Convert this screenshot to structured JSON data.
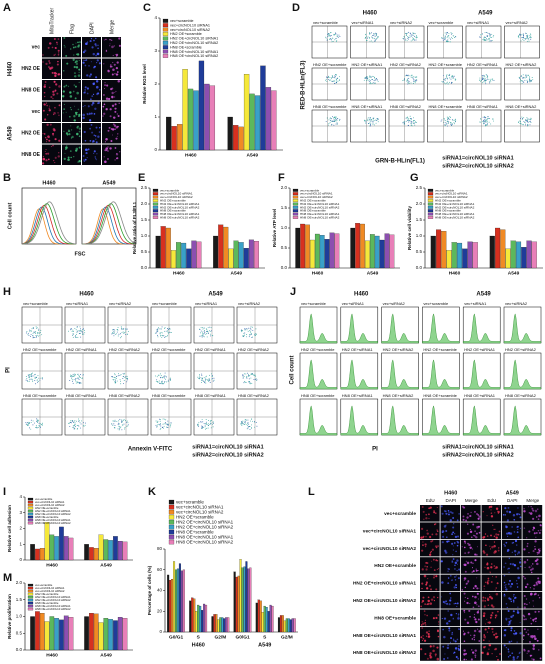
{
  "A": {
    "letter": "A",
    "columns": [
      "MitoTracker",
      "Flag",
      "DAPI",
      "Merge"
    ],
    "groups": [
      {
        "name": "H460",
        "rows": [
          "vec",
          "HN2 OE",
          "HN8 OE"
        ]
      },
      {
        "name": "A549",
        "rows": [
          "vec",
          "HN2 OE",
          "HN8 OE"
        ]
      }
    ]
  },
  "B": {
    "letter": "B",
    "plots": [
      "H460",
      "A549"
    ],
    "x_label": "FSC",
    "y_label": "Cell count"
  },
  "C": {
    "letter": "C",
    "type": "bar",
    "y_label": "Relative ROS level",
    "categories": [
      "H460",
      "A549"
    ],
    "ylim": [
      0,
      4
    ],
    "yticks": [
      0,
      1,
      2,
      3,
      4
    ],
    "legend": "inside",
    "series": [
      {
        "name": "vec+scramble",
        "color": "#1a1a1a",
        "values": [
          1.0,
          1.0
        ]
      },
      {
        "name": "vec+circNOL10 siRNA1",
        "color": "#d7301f",
        "values": [
          0.72,
          0.75
        ]
      },
      {
        "name": "vec+circNOL10 siRNA2",
        "color": "#f08a24",
        "values": [
          0.78,
          0.7
        ]
      },
      {
        "name": "HN2 OE+scramble",
        "color": "#f5e83a",
        "values": [
          2.45,
          2.3
        ]
      },
      {
        "name": "HN2 OE+circNOL10 siRNA1",
        "color": "#5cb85c",
        "values": [
          1.85,
          1.7
        ]
      },
      {
        "name": "HN2 OE+circNOL10 siRNA2",
        "color": "#39a0c8",
        "values": [
          1.8,
          1.65
        ]
      },
      {
        "name": "HN8 OE+scramble",
        "color": "#1f3c99",
        "values": [
          2.7,
          2.55
        ]
      },
      {
        "name": "HN8 OE+circNOL10 siRNA1",
        "color": "#8c4fb0",
        "values": [
          2.0,
          1.9
        ]
      },
      {
        "name": "HN8 OE+circNOL10 siRNA2",
        "color": "#e87fb8",
        "values": [
          1.95,
          1.8
        ]
      }
    ]
  },
  "D": {
    "letter": "D",
    "plot": "scatter",
    "titles": [
      "H460",
      "A549"
    ],
    "cells": [
      [
        "vec+scramble",
        "vec+siRNA1",
        "vec+siRNA2",
        "vec+scramble",
        "vec+siRNA1",
        "vec+siRNA2"
      ],
      [
        "HN2 OE+scramble",
        "HN2 OE+siRNA1",
        "HN2 OE+siRNA2",
        "HN2 OE+scramble",
        "HN2 OE+siRNA1",
        "HN2 OE+siRNA2"
      ],
      [
        "HN8 OE+scramble",
        "HN8 OE+siRNA1",
        "HN8 OE+siRNA2",
        "HN8 OE+scramble",
        "HN8 OE+siRNA1",
        "HN8 OE+siRNA2"
      ]
    ],
    "x_label": "GRN-B-HLin(FL1)",
    "y_label": "RED-B-HLin(FL3)",
    "note": [
      "siRNA1=circNOL10 siRNA1",
      "siRNA2=circNOL10 siRNA2"
    ]
  },
  "E": {
    "letter": "E",
    "type": "bar",
    "y_label": "Relative ratio of FL3/FL1",
    "categories": [
      "H460",
      "A549"
    ],
    "ylim": [
      0,
      2.5
    ],
    "yticks": [
      {
        "value": 0,
        "label": "0.0"
      },
      {
        "value": 0.5,
        "label": "0.5"
      },
      {
        "value": 1,
        "label": "1.0"
      },
      {
        "value": 1.5,
        "label": "1.5"
      },
      {
        "value": 2,
        "label": "2.0"
      },
      {
        "value": 2.5,
        "label": "2.5"
      }
    ],
    "legend": "inside",
    "series": [
      {
        "name": "vec+scramble",
        "color": "#1a1a1a",
        "values": [
          1.0,
          1.0
        ]
      },
      {
        "name": "vec+circNOL10 siRNA1",
        "color": "#d7301f",
        "values": [
          1.3,
          1.35
        ]
      },
      {
        "name": "vec+circNOL10 siRNA2",
        "color": "#f08a24",
        "values": [
          1.25,
          1.28
        ]
      },
      {
        "name": "HN2 OE+scramble",
        "color": "#f5e83a",
        "values": [
          0.55,
          0.6
        ]
      },
      {
        "name": "HN2 OE+circNOL10 siRNA1",
        "color": "#5cb85c",
        "values": [
          0.8,
          0.85
        ]
      },
      {
        "name": "HN2 OE+circNOL10 siRNA2",
        "color": "#39a0c8",
        "values": [
          0.78,
          0.8
        ]
      },
      {
        "name": "HN8 OE+scramble",
        "color": "#1f3c99",
        "values": [
          0.6,
          0.62
        ]
      },
      {
        "name": "HN8 OE+circNOL10 siRNA1",
        "color": "#8c4fb0",
        "values": [
          0.85,
          0.88
        ]
      },
      {
        "name": "HN8 OE+circNOL10 siRNA2",
        "color": "#e87fb8",
        "values": [
          0.82,
          0.84
        ]
      }
    ]
  },
  "F": {
    "letter": "F",
    "type": "bar",
    "y_label": "Relative ATP level",
    "categories": [
      "H460",
      "A549"
    ],
    "ylim": [
      0,
      2
    ],
    "yticks": [
      {
        "value": 0,
        "label": "0.0"
      },
      {
        "value": 0.5,
        "label": "0.5"
      },
      {
        "value": 1,
        "label": "1.0"
      },
      {
        "value": 1.5,
        "label": "1.5"
      },
      {
        "value": 2,
        "label": "2.0"
      }
    ],
    "legend": "inside",
    "series": [
      {
        "name": "vec+scramble",
        "color": "#1a1a1a",
        "values": [
          1.0,
          1.0
        ]
      },
      {
        "name": "vec+circNOL10 siRNA1",
        "color": "#d7301f",
        "values": [
          1.1,
          1.12
        ]
      },
      {
        "name": "vec+circNOL10 siRNA2",
        "color": "#f08a24",
        "values": [
          1.08,
          1.1
        ]
      },
      {
        "name": "HN2 OE+scramble",
        "color": "#f5e83a",
        "values": [
          0.7,
          0.68
        ]
      },
      {
        "name": "HN2 OE+circNOL10 siRNA1",
        "color": "#5cb85c",
        "values": [
          0.85,
          0.84
        ]
      },
      {
        "name": "HN2 OE+circNOL10 siRNA2",
        "color": "#39a0c8",
        "values": [
          0.82,
          0.8
        ]
      },
      {
        "name": "HN8 OE+scramble",
        "color": "#1f3c99",
        "values": [
          0.72,
          0.7
        ]
      },
      {
        "name": "HN8 OE+circNOL10 siRNA1",
        "color": "#8c4fb0",
        "values": [
          0.88,
          0.86
        ]
      },
      {
        "name": "HN8 OE+circNOL10 siRNA2",
        "color": "#e87fb8",
        "values": [
          0.86,
          0.83
        ]
      }
    ]
  },
  "G": {
    "letter": "G",
    "type": "bar",
    "y_label": "Relative cell viability",
    "categories": [
      "H460",
      "A549"
    ],
    "ylim": [
      0,
      2.5
    ],
    "yticks": [
      {
        "value": 0,
        "label": "0.0"
      },
      {
        "value": 0.5,
        "label": "0.5"
      },
      {
        "value": 1,
        "label": "1.0"
      },
      {
        "value": 1.5,
        "label": "1.5"
      },
      {
        "value": 2,
        "label": "2.0"
      },
      {
        "value": 2.5,
        "label": "2.5"
      }
    ],
    "legend": "inside",
    "series": [
      {
        "name": "vec+scramble",
        "color": "#1a1a1a",
        "values": [
          1.0,
          1.0
        ]
      },
      {
        "name": "vec+circNOL10 siRNA1",
        "color": "#d7301f",
        "values": [
          1.2,
          1.25
        ]
      },
      {
        "name": "vec+circNOL10 siRNA2",
        "color": "#f08a24",
        "values": [
          1.15,
          1.2
        ]
      },
      {
        "name": "HN2 OE+scramble",
        "color": "#f5e83a",
        "values": [
          0.55,
          0.6
        ]
      },
      {
        "name": "HN2 OE+circNOL10 siRNA1",
        "color": "#5cb85c",
        "values": [
          0.8,
          0.85
        ]
      },
      {
        "name": "HN2 OE+circNOL10 siRNA2",
        "color": "#39a0c8",
        "values": [
          0.78,
          0.82
        ]
      },
      {
        "name": "HN8 OE+scramble",
        "color": "#1f3c99",
        "values": [
          0.6,
          0.65
        ]
      },
      {
        "name": "HN8 OE+circNOL10 siRNA1",
        "color": "#8c4fb0",
        "values": [
          0.82,
          0.85
        ]
      },
      {
        "name": "HN8 OE+circNOL10 siRNA2",
        "color": "#e87fb8",
        "values": [
          0.8,
          0.82
        ]
      }
    ]
  },
  "H": {
    "letter": "H",
    "plot": "scatter",
    "titles": [
      "H460",
      "A549"
    ],
    "cells": [
      [
        "vec+scramble",
        "vec+siRNA1",
        "vec+siRNA2",
        "vec+scramble",
        "vec+siRNA1",
        "vec+siRNA2"
      ],
      [
        "HN2 OE+scramble",
        "HN2 OE+siRNA1",
        "HN2 OE+siRNA2",
        "HN2 OE+scramble",
        "HN2 OE+siRNA1",
        "HN2 OE+siRNA2"
      ],
      [
        "HN8 OE+scramble",
        "HN8 OE+siRNA1",
        "HN8 OE+siRNA2",
        "HN8 OE+scramble",
        "HN8 OE+siRNA1",
        "HN8 OE+siRNA2"
      ]
    ],
    "x_label": "Annexin V-FITC",
    "y_label": "PI",
    "note": [
      "siRNA1=circNOL10 siRNA1",
      "siRNA2=circNOL10 siRNA2"
    ]
  },
  "J": {
    "letter": "J",
    "plot": "histogram",
    "titles": [
      "H460",
      "A549"
    ],
    "cells": [
      [
        "vec+scramble",
        "vec+siRNA1",
        "vec+siRNA2",
        "vec+scramble",
        "vec+siRNA1",
        "vec+siRNA2"
      ],
      [
        "HN2 OE+scramble",
        "HN2 OE+siRNA1",
        "HN2 OE+siRNA2",
        "HN2 OE+scramble",
        "HN2 OE+siRNA1",
        "HN2 OE+siRNA2"
      ],
      [
        "HN8 OE+scramble",
        "HN8 OE+siRNA1",
        "HN8 OE+siRNA2",
        "HN8 OE+scramble",
        "HN8 OE+siRNA1",
        "HN8 OE+siRNA2"
      ]
    ],
    "x_label": "PI",
    "y_label": "Cell count",
    "note": [
      "siRNA1=circNOL10 siRNA1",
      "siRNA2=circNOL10 siRNA2"
    ]
  },
  "I": {
    "letter": "I",
    "type": "bar",
    "y_label": "Relative cell adhesion",
    "categories": [
      "H460",
      "A549"
    ],
    "ylim": [
      0,
      4
    ],
    "yticks": [
      0,
      1,
      2,
      3,
      4
    ],
    "legend": "inside",
    "series": [
      {
        "name": "vec+scramble",
        "color": "#1a1a1a",
        "values": [
          1.0,
          1.0
        ]
      },
      {
        "name": "vec+circNOL10 siRNA1",
        "color": "#d7301f",
        "values": [
          0.7,
          0.8
        ]
      },
      {
        "name": "vec+circNOL10 siRNA2",
        "color": "#f08a24",
        "values": [
          0.75,
          0.75
        ]
      },
      {
        "name": "HN2 OE+scramble",
        "color": "#f5e83a",
        "values": [
          2.4,
          1.6
        ]
      },
      {
        "name": "HN2 OE+circNOL10 siRNA1",
        "color": "#5cb85c",
        "values": [
          1.6,
          1.3
        ]
      },
      {
        "name": "HN2 OE+circNOL10 siRNA2",
        "color": "#39a0c8",
        "values": [
          1.5,
          1.25
        ]
      },
      {
        "name": "HN8 OE+scramble",
        "color": "#1f3c99",
        "values": [
          2.1,
          1.5
        ]
      },
      {
        "name": "HN8 OE+circNOL10 siRNA1",
        "color": "#8c4fb0",
        "values": [
          1.5,
          1.2
        ]
      },
      {
        "name": "HN8 OE+circNOL10 siRNA2",
        "color": "#e87fb8",
        "values": [
          1.4,
          1.15
        ]
      }
    ]
  },
  "M": {
    "letter": "M",
    "type": "bar",
    "y_label": "Relative proliferation",
    "categories": [
      "H460",
      "A549"
    ],
    "ylim": [
      0,
      2
    ],
    "yticks": [
      {
        "value": 0,
        "label": "0.0"
      },
      {
        "value": 0.5,
        "label": "0.5"
      },
      {
        "value": 1,
        "label": "1.0"
      },
      {
        "value": 1.5,
        "label": "1.5"
      },
      {
        "value": 2,
        "label": "2.0"
      }
    ],
    "legend": "inside",
    "series": [
      {
        "name": "vec+scramble",
        "color": "#1a1a1a",
        "values": [
          1.0,
          1.0
        ]
      },
      {
        "name": "vec+circNOL10 siRNA1",
        "color": "#d7301f",
        "values": [
          1.15,
          1.1
        ]
      },
      {
        "name": "vec+circNOL10 siRNA2",
        "color": "#f08a24",
        "values": [
          1.1,
          1.08
        ]
      },
      {
        "name": "HN2 OE+scramble",
        "color": "#f5e83a",
        "values": [
          0.85,
          0.82
        ]
      },
      {
        "name": "HN2 OE+circNOL10 siRNA1",
        "color": "#5cb85c",
        "values": [
          1.0,
          0.95
        ]
      },
      {
        "name": "HN2 OE+circNOL10 siRNA2",
        "color": "#39a0c8",
        "values": [
          0.95,
          0.92
        ]
      },
      {
        "name": "HN8 OE+scramble",
        "color": "#1f3c99",
        "values": [
          0.9,
          0.88
        ]
      },
      {
        "name": "HN8 OE+circNOL10 siRNA1",
        "color": "#8c4fb0",
        "values": [
          1.02,
          0.98
        ]
      },
      {
        "name": "HN8 OE+circNOL10 siRNA2",
        "color": "#e87fb8",
        "values": [
          0.98,
          0.95
        ]
      }
    ]
  },
  "K": {
    "letter": "K",
    "type": "bar",
    "y_label": "Percentage of cells (%)",
    "categories": [
      "G0/G1",
      "S",
      "G2/M",
      "G0/G1",
      "S",
      "G2/M"
    ],
    "group_labels": [
      "H460",
      "A549"
    ],
    "ylim": [
      0,
      80
    ],
    "yticks": [
      0,
      20,
      40,
      60,
      80
    ],
    "legend": "above",
    "series": [
      {
        "name": "vec+scramble",
        "color": "#1a1a1a",
        "values": [
          55,
          30,
          15,
          58,
          28,
          14
        ]
      },
      {
        "name": "vec+circNOL10 siRNA1",
        "color": "#d7301f",
        "values": [
          50,
          33,
          17,
          53,
          31,
          16
        ]
      },
      {
        "name": "vec+circNOL10 siRNA2",
        "color": "#f08a24",
        "values": [
          51,
          32,
          17,
          54,
          30,
          16
        ]
      },
      {
        "name": "HN2 OE+scramble",
        "color": "#f5e83a",
        "values": [
          68,
          20,
          12,
          70,
          19,
          11
        ]
      },
      {
        "name": "HN2 OE+circNOL10 siRNA1",
        "color": "#5cb85c",
        "values": [
          60,
          26,
          14,
          62,
          25,
          13
        ]
      },
      {
        "name": "HN2 OE+circNOL10 siRNA2",
        "color": "#39a0c8",
        "values": [
          61,
          25,
          14,
          63,
          24,
          13
        ]
      },
      {
        "name": "HN8 OE+scramble",
        "color": "#1f3c99",
        "values": [
          66,
          21,
          13,
          68,
          20,
          12
        ]
      },
      {
        "name": "HN8 OE+circNOL10 siRNA1",
        "color": "#8c4fb0",
        "values": [
          59,
          27,
          14,
          61,
          26,
          13
        ]
      },
      {
        "name": "HN8 OE+circNOL10 siRNA2",
        "color": "#e87fb8",
        "values": [
          60,
          26,
          14,
          62,
          25,
          13
        ]
      }
    ]
  },
  "L": {
    "letter": "L",
    "titles": [
      "H460",
      "A549"
    ],
    "columns": [
      "EdU",
      "DAPI",
      "Merge"
    ],
    "rows": [
      "vec+scramble",
      "vec+circNOL10 siRNA1",
      "vec+circNOL10 siRNA2",
      "HN2 OE+scramble",
      "HN2 OE+circNOL10 siRNA1",
      "HN2 OE+circNOL10 siRNA2",
      "HN8 OE+scramble",
      "HN8 OE+circNOL10 siRNA1",
      "HN8 OE+circNOL10 siRNA2"
    ]
  }
}
